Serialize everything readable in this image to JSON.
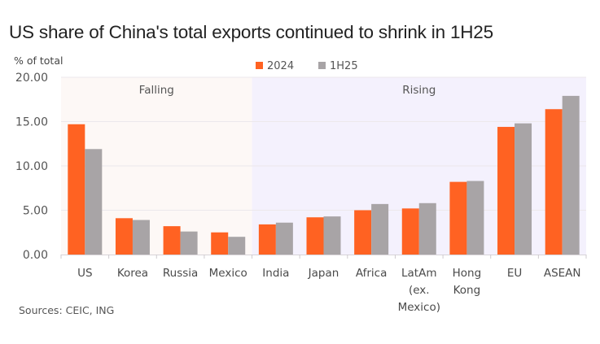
{
  "header": {
    "title": "US share of China's total exports continued to shrink in 1H25"
  },
  "footer": {
    "source": "Sources: CEIC, ING"
  },
  "chart_data": {
    "type": "bar",
    "title": "US share of China's total exports continued to shrink in 1H25",
    "xlabel": "",
    "ylabel": "% of total",
    "ylim": [
      0,
      20
    ],
    "yticks": [
      "0.00",
      "5.00",
      "10.00",
      "15.00",
      "20.00"
    ],
    "ytick_values": [
      0,
      5,
      10,
      15,
      20
    ],
    "grid": true,
    "legend_position": "top-center",
    "categories": [
      [
        "US"
      ],
      [
        "Korea"
      ],
      [
        "Russia"
      ],
      [
        "Mexico"
      ],
      [
        "India"
      ],
      [
        "Japan"
      ],
      [
        "Africa"
      ],
      [
        "LatAm",
        "(ex.",
        "Mexico)"
      ],
      [
        "Hong",
        "Kong"
      ],
      [
        "EU"
      ],
      [
        "ASEAN"
      ]
    ],
    "series": [
      {
        "name": "2024",
        "color": "#ff6222",
        "values": [
          14.7,
          4.1,
          3.2,
          2.5,
          3.4,
          4.2,
          5.0,
          5.2,
          8.2,
          14.4,
          16.4
        ]
      },
      {
        "name": "1H25",
        "color": "#a8a4a6",
        "values": [
          11.9,
          3.9,
          2.6,
          2.0,
          3.6,
          4.3,
          5.7,
          5.8,
          8.3,
          14.8,
          17.9
        ]
      }
    ],
    "regions": [
      {
        "label": "Falling",
        "from_index": 0,
        "to_index": 3,
        "color": "#fdf8f6"
      },
      {
        "label": "Rising",
        "from_index": 4,
        "to_index": 10,
        "color": "#f4f1fd"
      }
    ]
  }
}
